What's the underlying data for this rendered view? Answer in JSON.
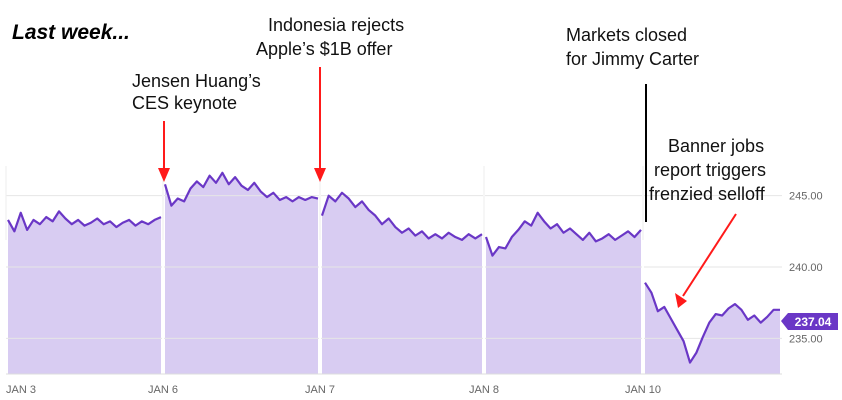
{
  "title": "Last week...",
  "colors": {
    "line": "#6a37c6",
    "area": "#d8ccf2",
    "arrow": "#ff1a1a",
    "grid": "#e6e6e6",
    "gap_line": "#ffffff",
    "badge": "#6a37c6"
  },
  "annotations": [
    {
      "lines": [
        "Jensen Huang’s",
        "CES keynote"
      ],
      "arrow_color": "#ff1a1a"
    },
    {
      "lines": [
        "Indonesia rejects",
        "Apple’s $1B offer"
      ],
      "arrow_color": "#ff1a1a"
    },
    {
      "lines": [
        "Markets closed",
        "for Jimmy Carter"
      ],
      "arrow_color": "#000000"
    },
    {
      "lines": [
        "Banner jobs",
        "report triggers",
        "frenzied selloff"
      ],
      "arrow_color": "#ff1a1a"
    }
  ],
  "chart_data": {
    "type": "area",
    "title": "Last week...",
    "xlabel": "",
    "ylabel": "",
    "ylim": [
      232.5,
      247.5
    ],
    "yticks": [
      "245.00",
      "240.00",
      "235.00"
    ],
    "xticks": [
      "JAN 3",
      "JAN 6",
      "JAN 7",
      "JAN 8",
      "JAN 10"
    ],
    "last_price": "237.04",
    "series": [
      {
        "sessions": [
          {
            "day": "JAN 3",
            "values": [
              243.3,
              242.5,
              243.8,
              242.6,
              243.3,
              243.0,
              243.5,
              243.2,
              243.9,
              243.4,
              243.0,
              243.3,
              242.9,
              243.1,
              243.4,
              243.0,
              243.2,
              242.8,
              243.1,
              243.3,
              242.9,
              243.2,
              243.0,
              243.3,
              243.5
            ]
          },
          {
            "day": "JAN 6",
            "values": [
              245.8,
              244.3,
              244.8,
              244.6,
              245.5,
              246.0,
              245.6,
              246.4,
              245.9,
              246.6,
              245.8,
              246.3,
              245.7,
              245.4,
              245.9,
              245.3,
              244.9,
              245.2,
              244.7,
              244.9,
              244.6,
              244.9,
              244.7,
              244.9,
              244.8
            ]
          },
          {
            "day": "JAN 7",
            "values": [
              243.6,
              245.0,
              244.6,
              245.2,
              244.8,
              244.2,
              244.6,
              244.0,
              243.6,
              243.0,
              243.4,
              242.8,
              242.4,
              242.7,
              242.2,
              242.5,
              242.0,
              242.3,
              242.0,
              242.4,
              242.1,
              241.9,
              242.3,
              242.0,
              242.3
            ]
          },
          {
            "day": "JAN 8",
            "values": [
              242.1,
              240.8,
              241.4,
              241.3,
              242.1,
              242.6,
              243.2,
              242.9,
              243.8,
              243.2,
              242.7,
              243.0,
              242.4,
              242.7,
              242.3,
              241.9,
              242.4,
              241.8,
              242.0,
              242.3,
              241.9,
              242.2,
              242.5,
              242.1,
              242.6
            ]
          },
          {
            "day": "JAN 10",
            "values": [
              238.9,
              238.2,
              236.9,
              237.2,
              236.4,
              235.6,
              234.8,
              233.3,
              234.0,
              235.1,
              236.1,
              236.7,
              236.6,
              237.1,
              237.4,
              237.0,
              236.3,
              236.6,
              236.1,
              236.5,
              237.0,
              237.0
            ]
          }
        ]
      }
    ]
  }
}
